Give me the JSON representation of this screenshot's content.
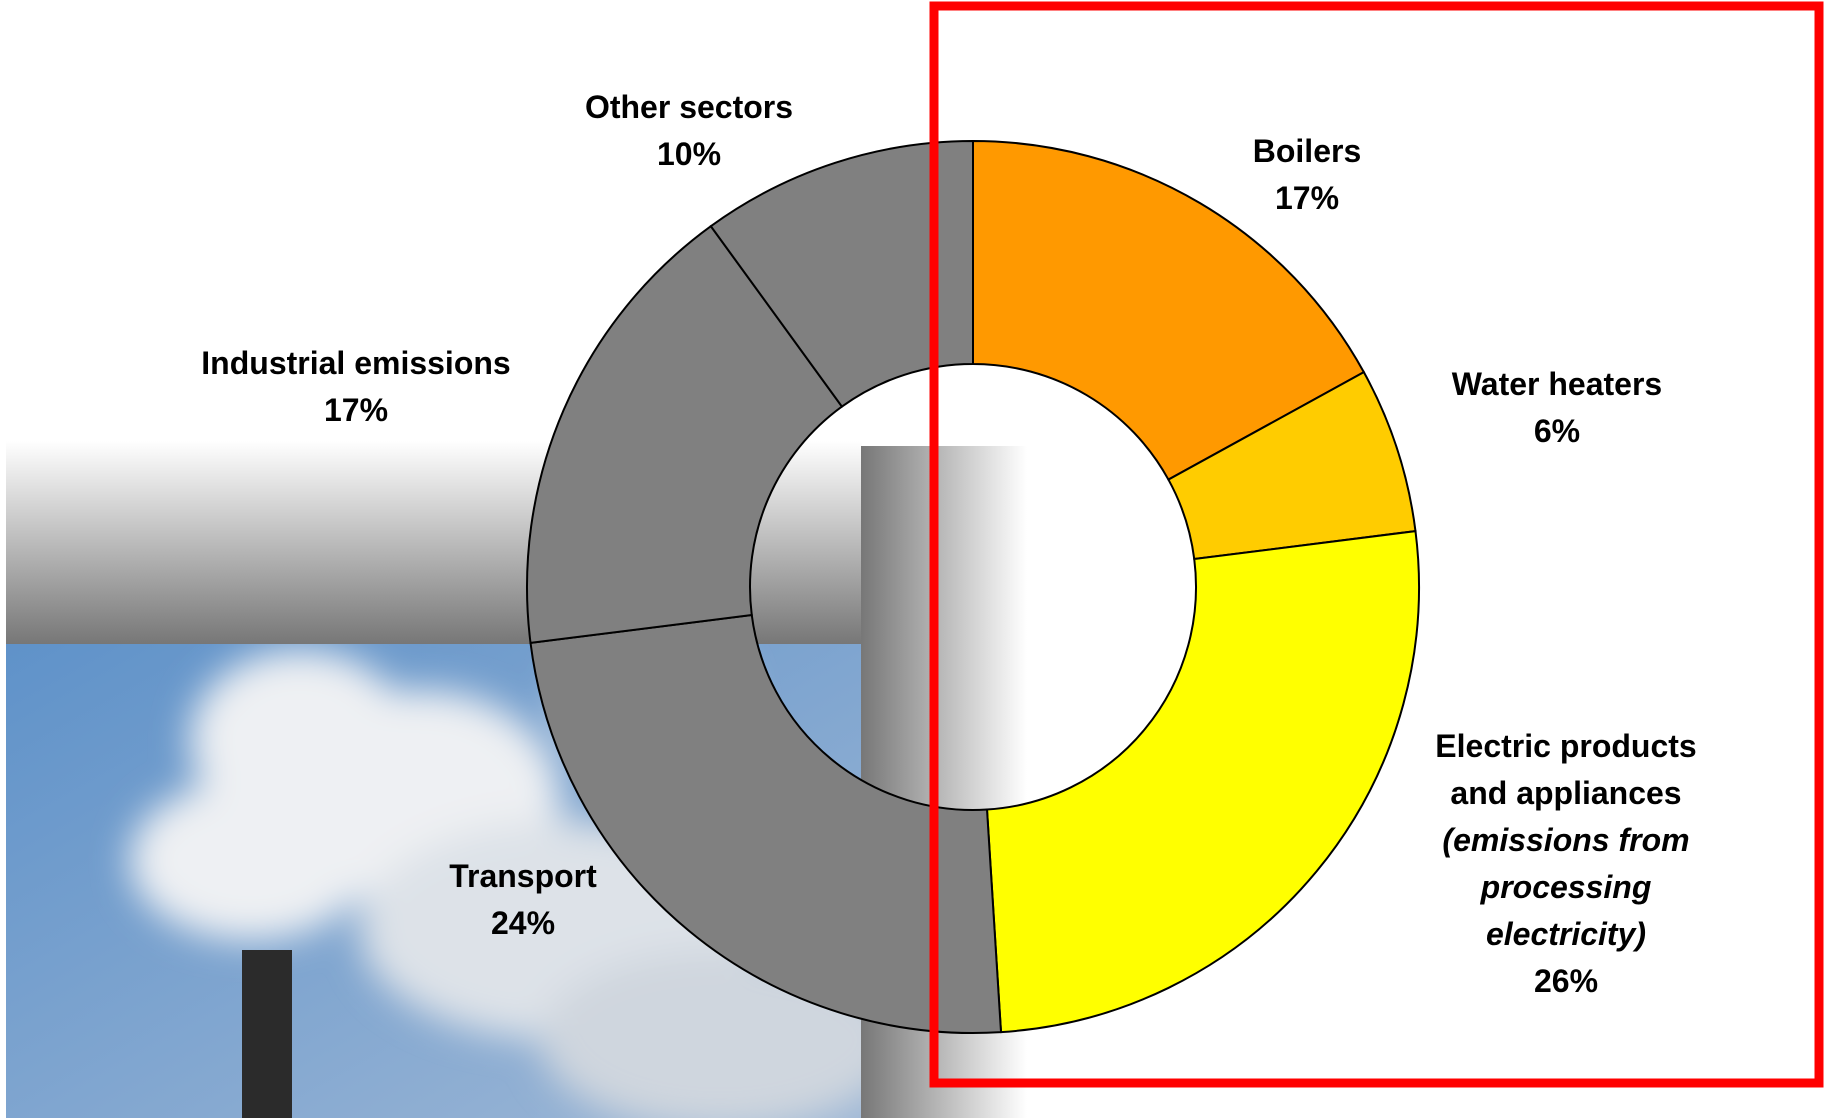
{
  "chart_data": {
    "type": "donut",
    "categories": [
      "Boilers",
      "Water heaters",
      "Electric products and appliances",
      "Transport",
      "Industrial emissions",
      "Other sectors"
    ],
    "values": [
      17,
      6,
      26,
      24,
      17,
      10
    ],
    "value_labels": [
      "17%",
      "6%",
      "26%",
      "24%",
      "17%",
      "10%"
    ],
    "colors": [
      "#ff9900",
      "#ffcc00",
      "#ffff00",
      "#808080",
      "#808080",
      "#808080"
    ],
    "annotations": [
      "(emissions from processing electricity)"
    ]
  }
}
